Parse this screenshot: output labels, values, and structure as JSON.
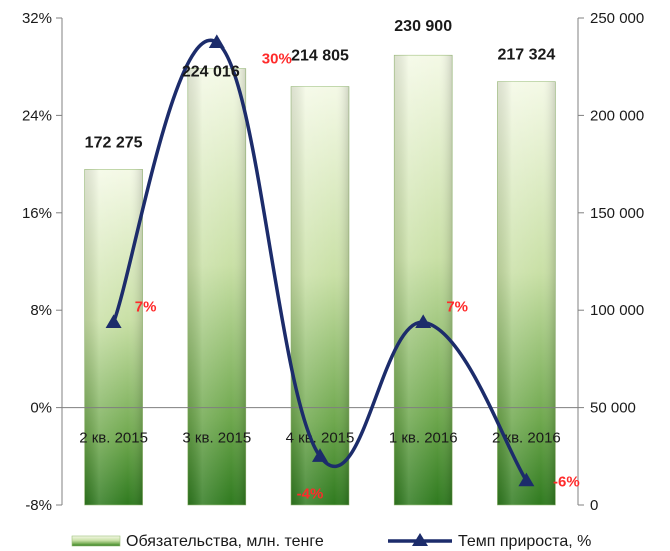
{
  "chart_data": {
    "type": "bar",
    "categories": [
      "2 кв. 2015",
      "3 кв. 2015",
      "4 кв. 2015",
      "1 кв. 2016",
      "2 кв. 2016"
    ],
    "series": [
      {
        "name": "Обязательства, млн. тенге",
        "type": "bar",
        "axis": "right",
        "values": [
          172275,
          224016,
          214805,
          230900,
          217324
        ],
        "labels": [
          "172 275",
          "224 016",
          "214 805",
          "230 900",
          "217 324"
        ]
      },
      {
        "name": "Темп прироста, %",
        "type": "line",
        "axis": "left",
        "values": [
          7,
          30,
          -4,
          7,
          -6
        ],
        "labels": [
          "7%",
          "30%",
          "-4%",
          "7%",
          "-6%"
        ]
      }
    ],
    "y_left": {
      "lim": [
        -8,
        32
      ],
      "ticks": [
        -8,
        0,
        8,
        16,
        24,
        32
      ],
      "tick_labels": [
        "-8%",
        "0%",
        "8%",
        "16%",
        "24%",
        "32%"
      ]
    },
    "y_right": {
      "lim": [
        0,
        250000
      ],
      "ticks": [
        0,
        50000,
        100000,
        150000,
        200000,
        250000
      ],
      "tick_labels": [
        "0",
        "50 000",
        "100 000",
        "150 000",
        "200 000",
        "250 000"
      ]
    },
    "legend": "bottom",
    "grid": false,
    "colors": {
      "bar_dark": "#2f7a1f",
      "bar_light": "#eef6d8",
      "line": "#1c2c6b",
      "percent_label": "#ff2a2a"
    }
  }
}
